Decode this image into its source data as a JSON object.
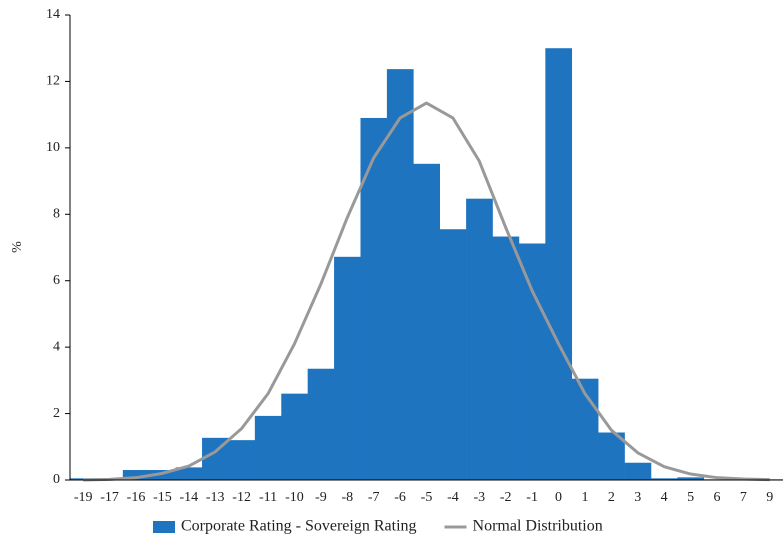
{
  "chart_data": {
    "type": "bar",
    "y_label": "%",
    "categories": [
      "-19",
      "-17",
      "-16",
      "-15",
      "-14",
      "-13",
      "-12",
      "-11",
      "-10",
      "-9",
      "-8",
      "-7",
      "-6",
      "-5",
      "-4",
      "-3",
      "-2",
      "-1",
      "0",
      "1",
      "2",
      "3",
      "4",
      "5",
      "6",
      "7",
      "9"
    ],
    "series": [
      {
        "name": "Corporate Rating - Sovereign Rating",
        "type": "bar",
        "color": "#1f74c0",
        "values": [
          0.05,
          0.05,
          0.3,
          0.3,
          0.38,
          1.27,
          1.2,
          1.93,
          2.6,
          3.35,
          6.72,
          10.9,
          12.37,
          9.52,
          7.55,
          8.47,
          7.33,
          7.12,
          13.0,
          3.05,
          1.43,
          0.52,
          0.05,
          0.08,
          0.02,
          0.02,
          0.02
        ]
      },
      {
        "name": "Normal Distribution",
        "type": "line",
        "color": "#999999",
        "values": [
          0.0,
          0.02,
          0.07,
          0.2,
          0.42,
          0.85,
          1.55,
          2.6,
          4.1,
          5.9,
          7.9,
          9.7,
          10.9,
          11.35,
          10.9,
          9.6,
          7.6,
          5.7,
          4.1,
          2.6,
          1.5,
          0.82,
          0.4,
          0.18,
          0.07,
          0.03,
          0.01
        ]
      }
    ],
    "ylim": [
      0,
      14
    ],
    "yticks": [
      0,
      2,
      4,
      6,
      8,
      10,
      12,
      14
    ],
    "legend": "bottom"
  }
}
